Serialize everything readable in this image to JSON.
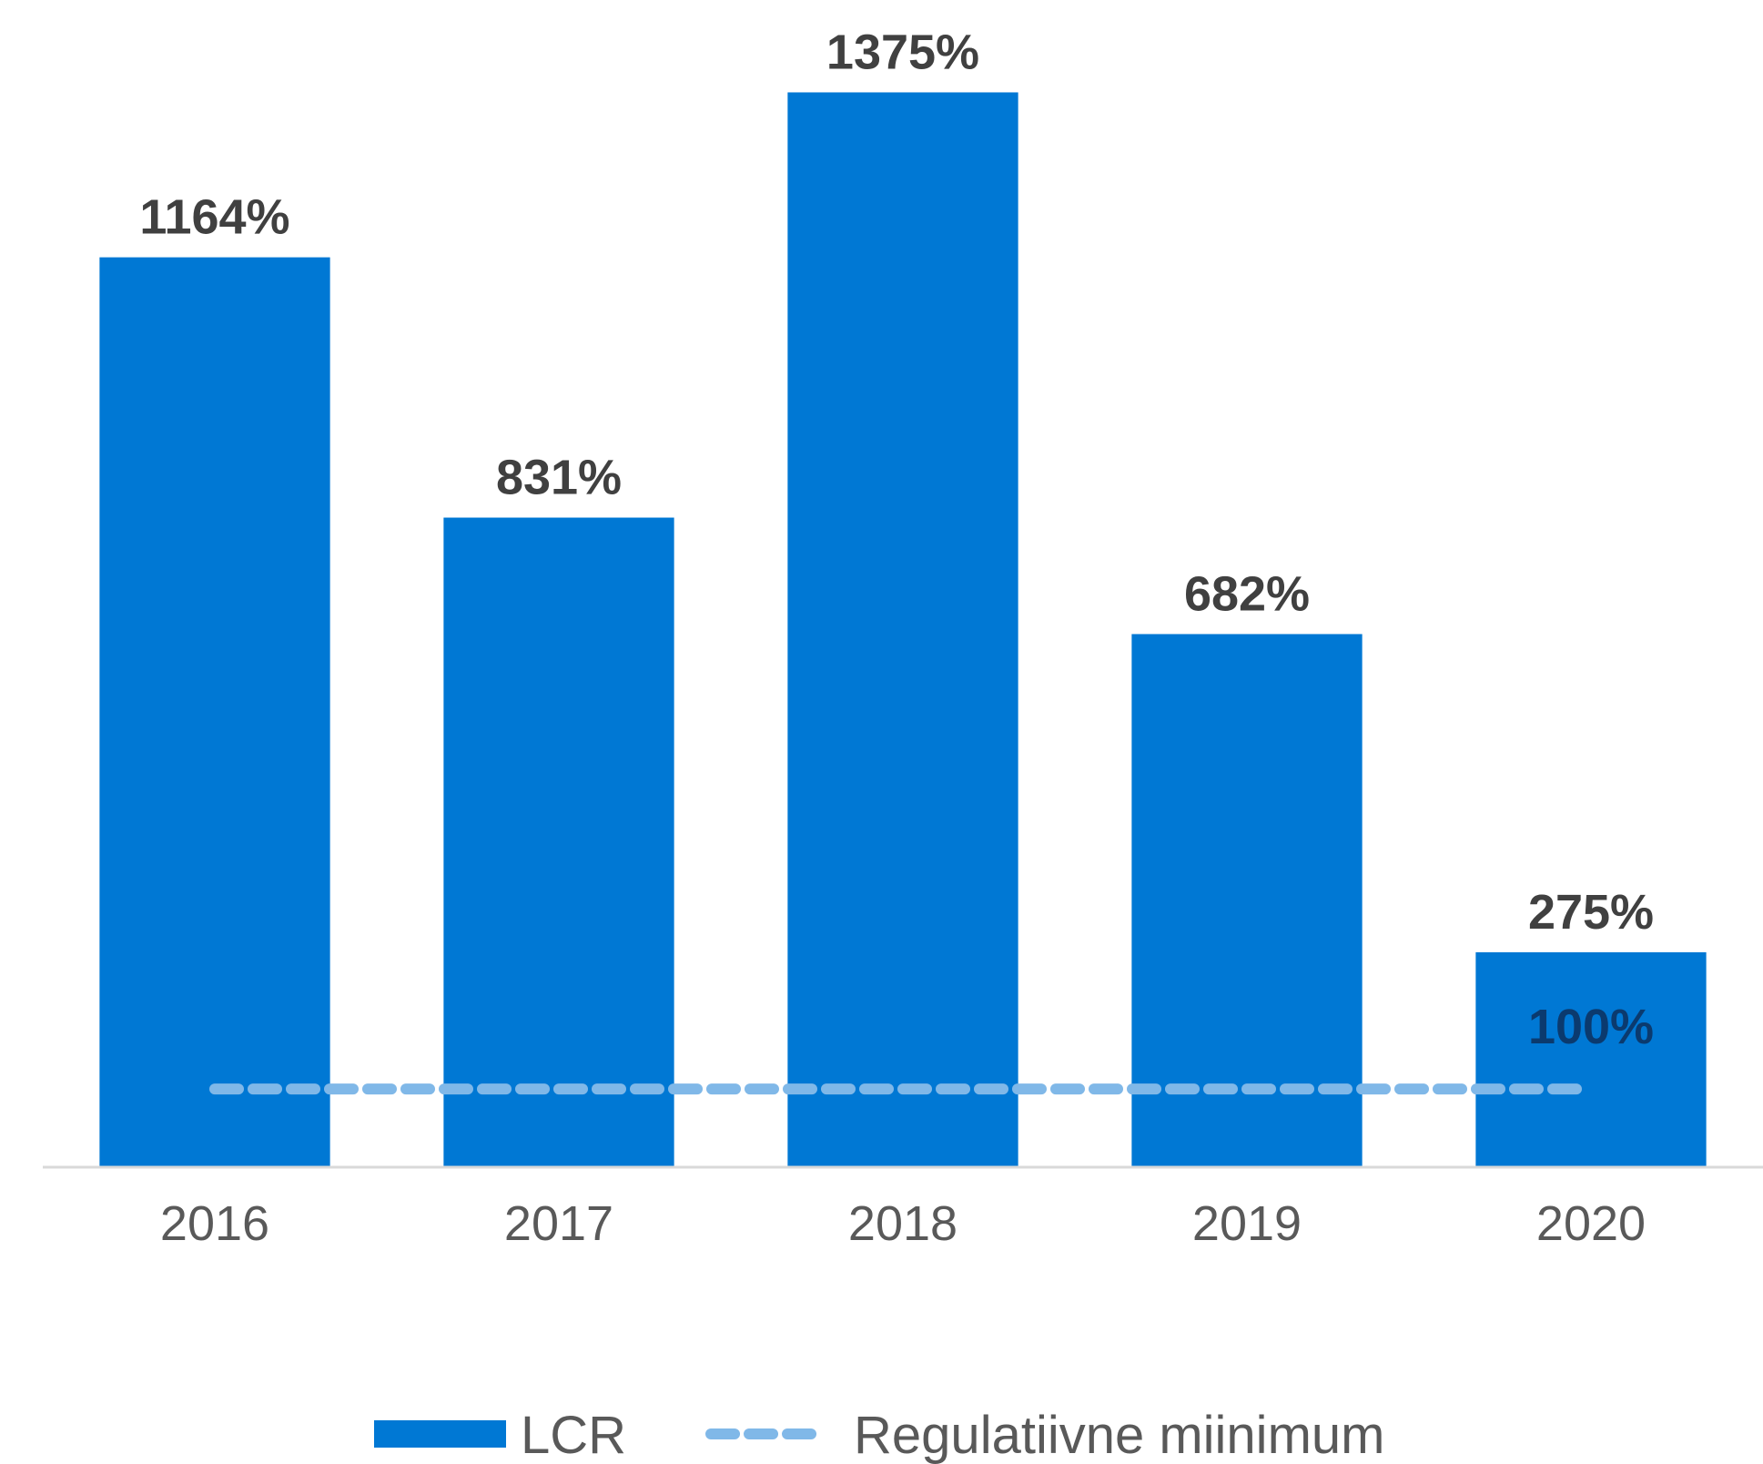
{
  "chart_data": {
    "type": "bar",
    "categories": [
      "2016",
      "2017",
      "2018",
      "2019",
      "2020"
    ],
    "series": [
      {
        "name": "LCR",
        "type": "bar",
        "color": "#0078d4",
        "values": [
          1164,
          831,
          1375,
          682,
          275
        ],
        "value_labels": [
          "1164%",
          "831%",
          "1375%",
          "682%",
          "275%"
        ]
      },
      {
        "name": "Regulatiivne miinimum",
        "type": "line",
        "color": "#80b8e8",
        "label_color": "#0b3a6e",
        "values": [
          100,
          100,
          100,
          100,
          100
        ],
        "value_labels": [
          null,
          null,
          null,
          null,
          "100%"
        ]
      }
    ],
    "ylim": [
      0,
      1400
    ],
    "legend": "bottom"
  }
}
